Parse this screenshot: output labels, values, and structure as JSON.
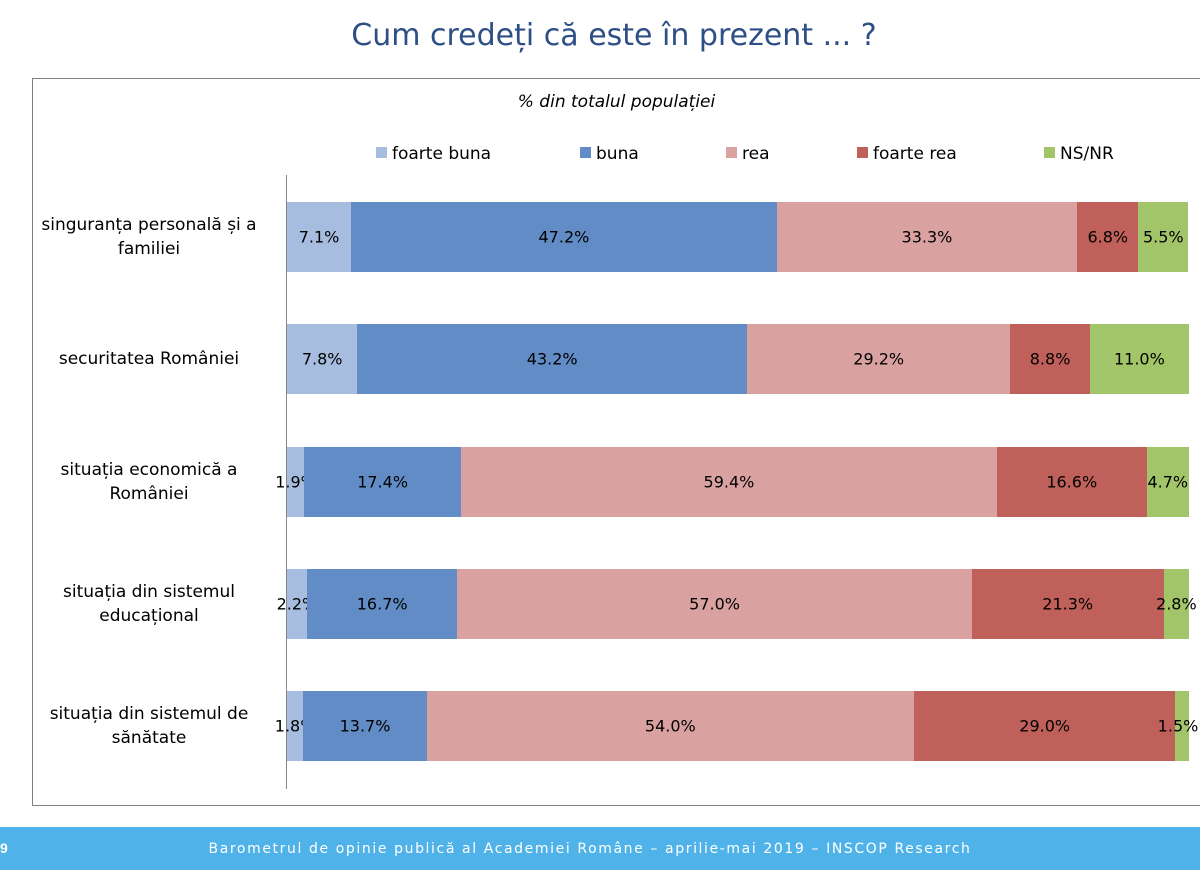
{
  "slide": {
    "title": "Cum credeți că este în prezent ... ?",
    "page_number": "9",
    "footer_prefix": "Barometrul de opinie publică al Academiei Române",
    "footer_sep1": " – ",
    "footer_period": "aprilie-mai 2019",
    "footer_sep2": " – ",
    "footer_org": "INSCOP Research"
  },
  "chart_data": {
    "type": "bar",
    "orientation": "horizontal-stacked-100",
    "subtitle": "% din totalul populației",
    "legend_position": "top",
    "categories": [
      "singuranța personală și a familiei",
      "securitatea României",
      "situația economică a României",
      "situația din sistemul educațional",
      "situația din sistemul de sănătate"
    ],
    "category_lines": [
      [
        "singuranța personală și a",
        "familiei"
      ],
      [
        "securitatea României"
      ],
      [
        "situația economică a",
        "României"
      ],
      [
        "situația din sistemul",
        "educațional"
      ],
      [
        "situația din sistemul de",
        "sănătate"
      ]
    ],
    "series": [
      {
        "name": "foarte buna",
        "color": "#a6bddf",
        "values": [
          7.1,
          7.8,
          1.9,
          2.2,
          1.8
        ],
        "labels": [
          "7.1%",
          "7.8%",
          "1.9%",
          "2.2%",
          "1.8%"
        ]
      },
      {
        "name": "buna",
        "color": "#628cc6",
        "values": [
          47.2,
          43.2,
          17.4,
          16.7,
          13.7
        ],
        "labels": [
          "47.2%",
          "43.2%",
          "17.4%",
          "16.7%",
          "13.7%"
        ]
      },
      {
        "name": "rea",
        "color": "#d9a2a0",
        "values": [
          33.3,
          29.2,
          59.4,
          57.0,
          54.0
        ],
        "labels": [
          "33.3%",
          "29.2%",
          "59.4%",
          "57.0%",
          "54.0%"
        ]
      },
      {
        "name": "foarte rea",
        "color": "#c0605a",
        "values": [
          6.8,
          8.8,
          16.6,
          21.3,
          29.0
        ],
        "labels": [
          "6.8%",
          "8.8%",
          "16.6%",
          "21.3%",
          "29.0%"
        ]
      },
      {
        "name": "NS/NR",
        "color": "#a3c56a",
        "values": [
          5.5,
          11.0,
          4.7,
          2.8,
          1.5
        ],
        "labels": [
          "5.5%",
          "11.0%",
          "4.7%",
          "2.8%",
          "1.5%"
        ]
      }
    ]
  }
}
